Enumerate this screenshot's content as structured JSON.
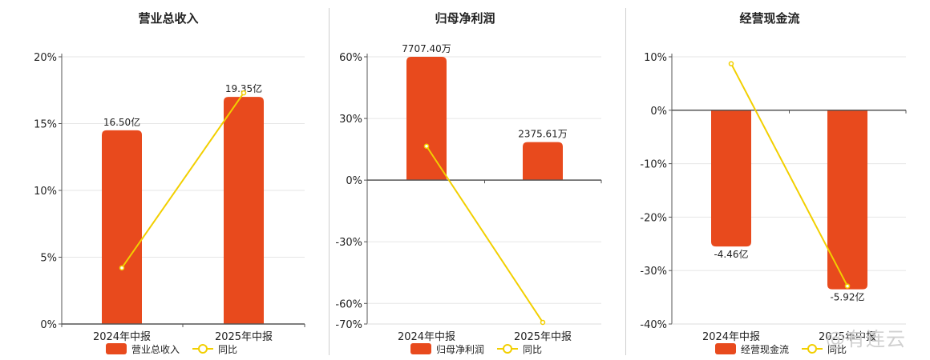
{
  "watermark": "@有连云",
  "colors": {
    "bar": "#e84a1d",
    "line": "#f2cf00",
    "grid": "#e6e6e6",
    "axis": "#555555",
    "text": "#222222"
  },
  "chart_data": [
    {
      "type": "bar",
      "title": "营业总收入",
      "categories": [
        "2024年中报",
        "2025年中报"
      ],
      "ylim": [
        0,
        20
      ],
      "yticks": [
        "0%",
        "5%",
        "10%",
        "15%",
        "20%"
      ],
      "series": [
        {
          "name": "营业总收入",
          "type": "bar",
          "values": [
            14.5,
            17.0
          ],
          "labels": [
            "16.50亿",
            "19.35亿"
          ]
        },
        {
          "name": "同比",
          "type": "line",
          "values": [
            4.2,
            17.3
          ]
        }
      ],
      "legend": "bottom-center",
      "grid": true
    },
    {
      "type": "bar",
      "title": "归母净利润",
      "categories": [
        "2024年中报",
        "2025年中报"
      ],
      "ylim": [
        -70,
        60
      ],
      "yticks": [
        "-70%",
        "-60%",
        "-30%",
        "0%",
        "30%",
        "60%"
      ],
      "series": [
        {
          "name": "归母净利润",
          "type": "bar",
          "values": [
            60.0,
            18.5
          ],
          "labels": [
            "7707.40万",
            "2375.61万"
          ]
        },
        {
          "name": "同比",
          "type": "line",
          "values": [
            16.5,
            -69.2
          ]
        }
      ],
      "legend": "bottom-center",
      "grid": true
    },
    {
      "type": "bar",
      "title": "经营现金流",
      "categories": [
        "2024年中报",
        "2025年中报"
      ],
      "ylim": [
        -40,
        10
      ],
      "yticks": [
        "-40%",
        "-30%",
        "-20%",
        "-10%",
        "0%",
        "10%"
      ],
      "series": [
        {
          "name": "经营现金流",
          "type": "bar",
          "values": [
            -25.5,
            -33.5
          ],
          "labels": [
            "-4.46亿",
            "-5.92亿"
          ]
        },
        {
          "name": "同比",
          "type": "line",
          "values": [
            8.7,
            -32.9
          ]
        }
      ],
      "legend": "bottom-center",
      "grid": true
    }
  ]
}
